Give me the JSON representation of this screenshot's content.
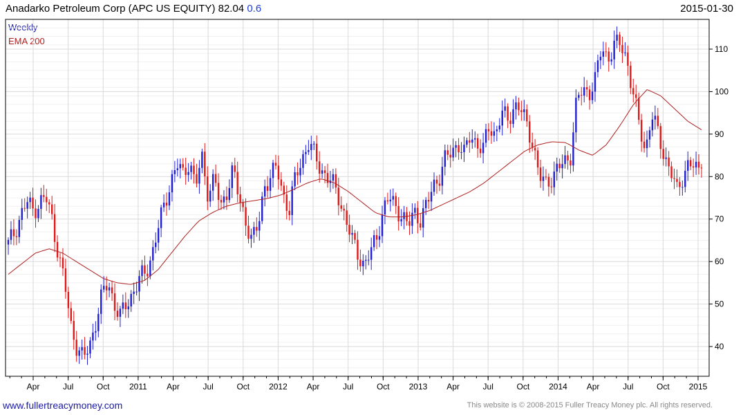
{
  "header": {
    "title": "Anadarko Petroleum Corp (APC US EQUITY) 82.04",
    "change": "0.6",
    "date": "2015-01-30"
  },
  "legend": {
    "weekly": "Weekly",
    "ema": "EMA 200"
  },
  "footer": {
    "website": "www.fullertreacymoney.com",
    "copyright": "This website is © 2008-2015 Fuller Treacy Money plc. All rights reserved."
  },
  "colors": {
    "up": "#1f1fd0",
    "down": "#e01818",
    "ema": "#b02020",
    "grid": "#d9d9d9",
    "axis": "#000000"
  },
  "chart_data": {
    "type": "candlestick",
    "frequency": "weekly",
    "ylim": [
      33,
      117
    ],
    "y_ticks": [
      40,
      50,
      60,
      70,
      80,
      90,
      100,
      110
    ],
    "x_ticks": [
      "Apr",
      "Jul",
      "Oct",
      "2011",
      "Apr",
      "Jul",
      "Oct",
      "2012",
      "Apr",
      "Jul",
      "Oct",
      "2013",
      "Apr",
      "Jul",
      "Oct",
      "2014",
      "Apr",
      "Jul",
      "Oct",
      "2015"
    ],
    "last_close": 82.04,
    "close_path": [
      64,
      67,
      71,
      74,
      72,
      74,
      75,
      70,
      62,
      55,
      45,
      40,
      37,
      40,
      46,
      52,
      55,
      50,
      47,
      50,
      53,
      56,
      57,
      62,
      68,
      73,
      79,
      83,
      80,
      84,
      78,
      84,
      76,
      80,
      72,
      77,
      82,
      74,
      70,
      65,
      68,
      78,
      80,
      82,
      76,
      72,
      80,
      84,
      88,
      85,
      82,
      80,
      78,
      75,
      70,
      65,
      62,
      59,
      62,
      66,
      72,
      75,
      73,
      71,
      68,
      72,
      70,
      73,
      78,
      80,
      84,
      86,
      88,
      85,
      90,
      88,
      86,
      92,
      90,
      95,
      93,
      97,
      96,
      92,
      88,
      80,
      78,
      80,
      82,
      83,
      85,
      98,
      100,
      100,
      103,
      110,
      108,
      111,
      111,
      108,
      100,
      92,
      86,
      95,
      90,
      85,
      82,
      76,
      80,
      84,
      81,
      82
    ],
    "ema_path": [
      57,
      59.5,
      62,
      63,
      62,
      60,
      58,
      56,
      55,
      54.6,
      55.5,
      58,
      62,
      66,
      69.5,
      71.5,
      73,
      73.8,
      74.3,
      74.8,
      75.6,
      77,
      78.5,
      79.5,
      78.5,
      76.5,
      74,
      71.5,
      70.5,
      70.5,
      71,
      72,
      73.5,
      75,
      76.5,
      78.5,
      81,
      83.5,
      86,
      87.5,
      88.2,
      88,
      86.2,
      85,
      87.5,
      92,
      97,
      100.5,
      99,
      96,
      93,
      91
    ]
  }
}
